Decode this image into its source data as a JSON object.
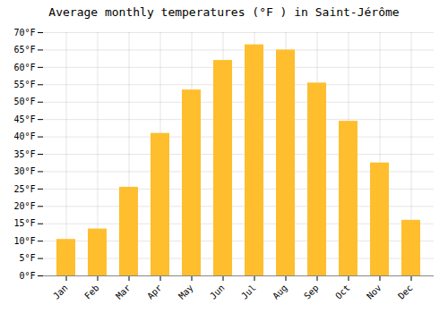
{
  "chart_data": {
    "type": "bar",
    "title": "Average monthly temperatures (°F ) in Saint-Jérôme",
    "categories": [
      "Jan",
      "Feb",
      "Mar",
      "Apr",
      "May",
      "Jun",
      "Jul",
      "Aug",
      "Sep",
      "Oct",
      "Nov",
      "Dec"
    ],
    "values": [
      10.5,
      13.5,
      25.5,
      41.0,
      53.5,
      62.0,
      66.5,
      65.0,
      55.5,
      44.5,
      32.5,
      16.0
    ],
    "color": "#FFBE2D",
    "ylim": [
      0,
      70
    ],
    "yticks": [
      {
        "value": 0,
        "label": "0°F"
      },
      {
        "value": 5,
        "label": "5°F"
      },
      {
        "value": 10,
        "label": "10°F"
      },
      {
        "value": 15,
        "label": "15°F"
      },
      {
        "value": 20,
        "label": "20°F"
      },
      {
        "value": 25,
        "label": "25°F"
      },
      {
        "value": 30,
        "label": "30°F"
      },
      {
        "value": 35,
        "label": "35°F"
      },
      {
        "value": 40,
        "label": "40°F"
      },
      {
        "value": 45,
        "label": "45°F"
      },
      {
        "value": 50,
        "label": "50°F"
      },
      {
        "value": 55,
        "label": "55°F"
      },
      {
        "value": 60,
        "label": "60°F"
      },
      {
        "value": 65,
        "label": "65°F"
      },
      {
        "value": 70,
        "label": "70°F"
      }
    ],
    "grid": true
  }
}
